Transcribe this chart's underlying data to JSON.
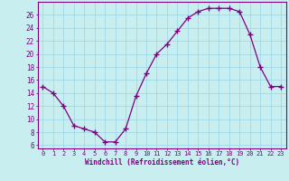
{
  "x": [
    0,
    1,
    2,
    3,
    4,
    5,
    6,
    7,
    8,
    9,
    10,
    11,
    12,
    13,
    14,
    15,
    16,
    17,
    18,
    19,
    20,
    21,
    22,
    23
  ],
  "y": [
    15,
    14,
    12,
    9,
    8.5,
    8,
    6.5,
    6.5,
    8.5,
    13.5,
    17,
    20,
    21.5,
    23.5,
    25.5,
    26.5,
    27,
    27,
    27,
    26.5,
    23,
    18,
    15,
    15
  ],
  "line_color": "#800080",
  "marker": "+",
  "marker_size": 4,
  "bg_color": "#c8eef0",
  "grid_color": "#a0d8e8",
  "xlabel": "Windchill (Refroidissement éolien,°C)",
  "xlabel_color": "#800080",
  "ylabel_ticks": [
    6,
    8,
    10,
    12,
    14,
    16,
    18,
    20,
    22,
    24,
    26
  ],
  "ylim": [
    5.5,
    28
  ],
  "xlim": [
    -0.5,
    23.5
  ],
  "tick_color": "#800080",
  "font_name": "monospace",
  "tick_fontsize": 5.0,
  "xlabel_fontsize": 5.5,
  "linewidth": 0.9,
  "markeredgewidth": 1.0
}
